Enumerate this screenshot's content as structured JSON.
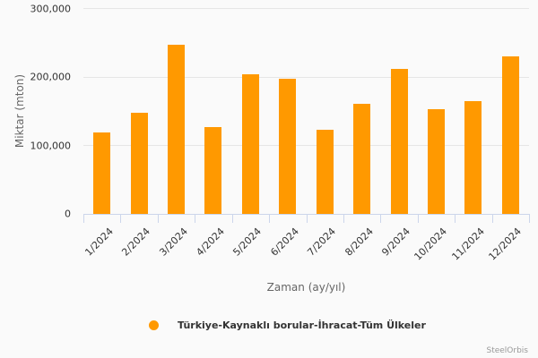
{
  "chart_data": {
    "type": "bar",
    "title": "",
    "xlabel": "Zaman (ay/yıl)",
    "ylabel": "Miktar (mton)",
    "categories": [
      "1/2024",
      "2/2024",
      "3/2024",
      "4/2024",
      "5/2024",
      "6/2024",
      "7/2024",
      "8/2024",
      "9/2024",
      "10/2024",
      "11/2024",
      "12/2024"
    ],
    "series": [
      {
        "name": "Türkiye-Kaynaklı borular-İhracat-Tüm Ülkeler",
        "color": "#ff9900",
        "values": [
          118600,
          147300,
          247700,
          126500,
          203400,
          196900,
          122600,
          160400,
          211300,
          152600,
          164300,
          229500
        ]
      }
    ],
    "ylim": [
      0,
      300000
    ],
    "yticks": [
      "0",
      "100,000",
      "200,000",
      "300,000"
    ],
    "grid": true,
    "legend_position": "bottom"
  },
  "axis": {
    "y_title": "Miktar (mton)",
    "x_title": "Zaman (ay/yıl)",
    "y_ticks": [
      "300,000",
      "200,000",
      "100,000",
      "0"
    ]
  },
  "legend": {
    "label": "Türkiye-Kaynaklı borular-İhracat-Tüm Ülkeler"
  },
  "credit": "SteelOrbis"
}
